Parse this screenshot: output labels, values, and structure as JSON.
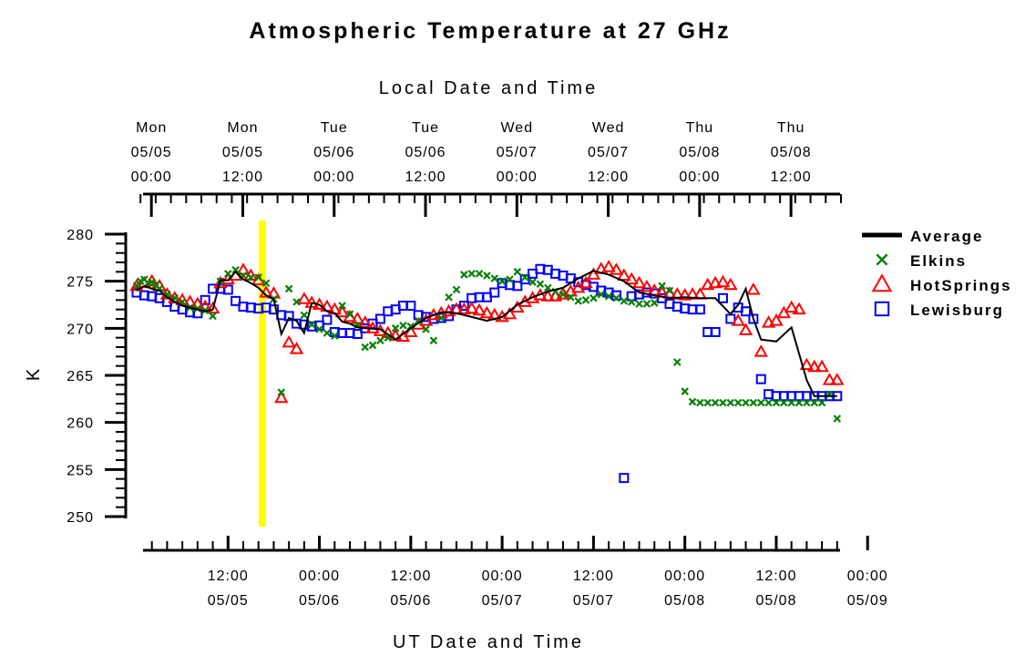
{
  "chart_data": {
    "type": "scatter",
    "title": "Atmospheric Temperature at 27 GHz",
    "ylabel": "K",
    "xlabel_bottom": "UT Date and Time",
    "xlabel_top": "Local Date and Time",
    "ylim": [
      250,
      280
    ],
    "yticks": [
      "250",
      "255",
      "260",
      "265",
      "270",
      "275",
      "280"
    ],
    "xlim_ut_hours": [
      0,
      92.5
    ],
    "bottom_ticks": [
      {
        "time": "12:00",
        "date": "05/05"
      },
      {
        "time": "00:00",
        "date": "05/06"
      },
      {
        "time": "12:00",
        "date": "05/06"
      },
      {
        "time": "00:00",
        "date": "05/07"
      },
      {
        "time": "12:00",
        "date": "05/07"
      },
      {
        "time": "00:00",
        "date": "05/08"
      },
      {
        "time": "12:00",
        "date": "05/08"
      },
      {
        "time": "00:00",
        "date": "05/09"
      }
    ],
    "top_ticks": [
      {
        "day": "Mon",
        "date": "05/05",
        "time": "00:00"
      },
      {
        "day": "Mon",
        "date": "05/05",
        "time": "12:00"
      },
      {
        "day": "Tue",
        "date": "05/06",
        "time": "00:00"
      },
      {
        "day": "Tue",
        "date": "05/06",
        "time": "12:00"
      },
      {
        "day": "Wed",
        "date": "05/07",
        "time": "00:00"
      },
      {
        "day": "Wed",
        "date": "05/07",
        "time": "12:00"
      },
      {
        "day": "Thu",
        "date": "05/08",
        "time": "00:00"
      },
      {
        "day": "Thu",
        "date": "05/08",
        "time": "12:00"
      }
    ],
    "highlight_ut_hour": 16.5,
    "highlight_color": "#ffff00",
    "legend_position": "right",
    "series": [
      {
        "name": "Average",
        "marker": "line",
        "color": "#000000",
        "x": [
          0,
          1,
          2,
          3,
          4,
          5,
          6,
          7,
          8,
          9,
          10,
          11,
          12,
          13,
          14,
          15,
          16,
          17,
          18,
          19,
          20,
          21,
          22,
          23,
          24,
          25,
          26,
          27,
          28,
          29,
          30,
          32,
          34,
          36,
          38,
          40,
          42,
          44,
          46,
          48,
          50,
          52,
          54,
          56,
          58,
          60,
          62,
          64,
          66,
          68,
          70,
          72,
          74,
          76,
          78,
          79,
          80,
          81,
          82,
          84,
          86,
          88,
          89,
          90,
          91,
          92
        ],
        "y": [
          274.0,
          274.5,
          274.2,
          274.0,
          273.3,
          272.8,
          272.4,
          272.2,
          272.0,
          271.8,
          272.0,
          275.1,
          275.1,
          276.0,
          275.2,
          274.8,
          274.3,
          273.5,
          273.1,
          269.4,
          271.1,
          270.8,
          269.5,
          272.7,
          272.5,
          271.8,
          271.6,
          270.7,
          270.5,
          270.1,
          270.0,
          269.9,
          268.8,
          270.0,
          271.1,
          271.7,
          271.6,
          271.2,
          270.8,
          271.2,
          272.5,
          273.3,
          273.9,
          274.3,
          275.3,
          276.1,
          275.7,
          275.0,
          273.8,
          273.5,
          273.2,
          273.3,
          273.2,
          273.2,
          271.5,
          272.5,
          274.2,
          271.0,
          268.8,
          268.6,
          270.1,
          264.5,
          262.8,
          262.8,
          262.8,
          262.8
        ]
      },
      {
        "name": "Elkins",
        "marker": "x",
        "color": "#008000",
        "x": [
          0,
          0.5,
          1,
          1.5,
          2,
          2.5,
          3,
          4,
          5,
          6,
          7,
          8,
          9,
          10,
          11,
          12,
          13,
          14,
          15,
          16,
          17,
          18,
          19,
          20,
          21,
          22,
          23,
          24,
          25,
          26,
          27,
          28,
          29,
          30,
          31,
          32,
          33,
          34,
          35,
          36,
          37,
          38,
          39,
          40,
          41,
          42,
          43,
          44,
          45,
          46,
          47,
          48,
          49,
          50,
          51,
          52,
          53,
          54,
          55,
          56,
          57,
          58,
          59,
          60,
          61,
          62,
          63,
          64,
          65,
          66,
          67,
          68,
          69,
          70,
          71,
          72,
          73,
          74,
          75,
          76,
          77,
          78,
          79,
          80,
          81,
          82,
          83,
          84,
          85,
          86,
          87,
          88,
          89,
          90,
          91,
          92
        ],
        "y": [
          274.5,
          275.0,
          275.2,
          274.8,
          274.9,
          274.6,
          274.2,
          273.6,
          273.2,
          272.8,
          272.2,
          272.1,
          271.9,
          271.3,
          275.0,
          275.8,
          276.2,
          275.6,
          275.4,
          275.4,
          274.8,
          273.1,
          263.2,
          274.2,
          272.8,
          271.4,
          270.4,
          269.9,
          269.5,
          269.2,
          272.4,
          271.5,
          270.3,
          268.0,
          268.2,
          268.7,
          269.0,
          270.0,
          270.3,
          270.2,
          270.8,
          269.9,
          268.7,
          271.1,
          273.3,
          274.1,
          275.7,
          275.8,
          275.8,
          275.6,
          275.3,
          275.0,
          275.2,
          276.0,
          275.4,
          274.9,
          274.7,
          274.3,
          273.9,
          273.6,
          273.3,
          272.9,
          273.0,
          273.2,
          273.6,
          273.4,
          273.2,
          272.9,
          272.8,
          272.6,
          272.6,
          272.7,
          274.5,
          274.0,
          266.4,
          263.3,
          262.2,
          262.1,
          262.1,
          262.1,
          262.1,
          262.1,
          262.1,
          262.1,
          262.1,
          262.1,
          262.1,
          262.1,
          262.1,
          262.1,
          262.1,
          262.1,
          262.1,
          262.1,
          263.0,
          260.4
        ],
        "y_note": "values read from plot"
      },
      {
        "name": "HotSprings",
        "marker": "triangle",
        "color": "#ff0000",
        "x": [
          0,
          1,
          2,
          3,
          4,
          5,
          6,
          7,
          8,
          9,
          10,
          11,
          12,
          13,
          14,
          15,
          16,
          17,
          18,
          19,
          20,
          21,
          22,
          23,
          24,
          25,
          26,
          27,
          28,
          29,
          30,
          31,
          32,
          33,
          34,
          35,
          36,
          37,
          38,
          39,
          40,
          41,
          42,
          43,
          44,
          45,
          46,
          47,
          48,
          49,
          50,
          51,
          52,
          53,
          54,
          55,
          56,
          57,
          58,
          59,
          60,
          61,
          62,
          63,
          64,
          65,
          66,
          67,
          68,
          69,
          70,
          71,
          72,
          73,
          74,
          75,
          76,
          77,
          78,
          79,
          80,
          81,
          82,
          83,
          84,
          85,
          86,
          87,
          88,
          89,
          90,
          91,
          92
        ],
        "y": [
          274.5,
          274.8,
          275.0,
          274.5,
          273.6,
          273.2,
          273.0,
          272.8,
          272.6,
          272.3,
          272.1,
          274.8,
          275.2,
          275.6,
          276.2,
          275.6,
          275.1,
          273.8,
          273.7,
          262.6,
          268.5,
          267.8,
          273.1,
          272.7,
          272.5,
          272.3,
          272.0,
          271.7,
          271.2,
          271.0,
          270.6,
          270.0,
          269.7,
          269.5,
          269.2,
          269.1,
          269.6,
          270.4,
          270.8,
          271.4,
          271.6,
          271.8,
          272.0,
          272.0,
          272.1,
          271.9,
          271.6,
          271.4,
          271.2,
          271.5,
          272.2,
          272.8,
          273.2,
          273.5,
          273.4,
          273.4,
          273.6,
          273.9,
          274.3,
          274.8,
          275.7,
          276.3,
          276.5,
          276.2,
          275.6,
          275.2,
          274.8,
          274.4,
          274.0,
          273.8,
          273.7,
          273.6,
          273.5,
          273.6,
          273.6,
          274.6,
          274.8,
          274.9,
          274.6,
          270.8,
          269.8,
          274.1,
          267.5,
          270.6,
          270.8,
          271.6,
          272.2,
          272.0,
          266.1,
          265.9,
          265.9,
          264.5,
          264.5
        ],
        "y_note": "values read from plot"
      },
      {
        "name": "Lewisburg",
        "marker": "square",
        "color": "#0000ff",
        "x": [
          0,
          1,
          2,
          3,
          4,
          5,
          6,
          7,
          8,
          9,
          10,
          11,
          12,
          13,
          14,
          15,
          16,
          17,
          18,
          19,
          20,
          21,
          22,
          23,
          24,
          25,
          26,
          27,
          28,
          29,
          30,
          31,
          32,
          33,
          34,
          35,
          36,
          37,
          38,
          39,
          40,
          41,
          42,
          43,
          44,
          45,
          46,
          47,
          48,
          49,
          50,
          51,
          52,
          53,
          54,
          55,
          56,
          57,
          58,
          59,
          60,
          61,
          62,
          63,
          64,
          65,
          66,
          67,
          68,
          69,
          70,
          71,
          72,
          73,
          74,
          75,
          76,
          77,
          78,
          79,
          80,
          81,
          82,
          83,
          84,
          85,
          86,
          87,
          88,
          89,
          90,
          91,
          92
        ],
        "y": [
          273.8,
          273.5,
          273.4,
          273.2,
          272.8,
          272.3,
          272.0,
          271.7,
          271.6,
          273.0,
          274.2,
          274.2,
          274.1,
          272.9,
          272.3,
          272.2,
          272.1,
          272.2,
          272.0,
          271.4,
          271.3,
          270.5,
          270.4,
          270.2,
          270.3,
          270.9,
          269.6,
          269.5,
          269.5,
          269.4,
          270.0,
          270.5,
          271.0,
          271.8,
          272.0,
          272.4,
          272.4,
          271.4,
          271.2,
          271.0,
          271.1,
          271.3,
          272.0,
          272.4,
          273.2,
          273.3,
          273.3,
          273.8,
          274.8,
          274.6,
          274.5,
          275.2,
          275.8,
          276.3,
          276.2,
          275.8,
          275.6,
          275.3,
          274.9,
          274.6,
          274.4,
          274.0,
          273.8,
          273.5,
          254.1,
          273.4,
          273.6,
          273.8,
          273.7,
          273.2,
          272.6,
          272.3,
          272.1,
          272.0,
          272.0,
          269.6,
          269.6,
          273.2,
          271.0,
          272.2,
          271.8,
          271.0,
          264.6,
          263.0,
          262.8,
          262.8,
          262.8,
          262.8,
          262.8,
          262.8,
          262.8,
          262.8,
          262.8
        ],
        "y_note": "values read from plot"
      }
    ]
  }
}
